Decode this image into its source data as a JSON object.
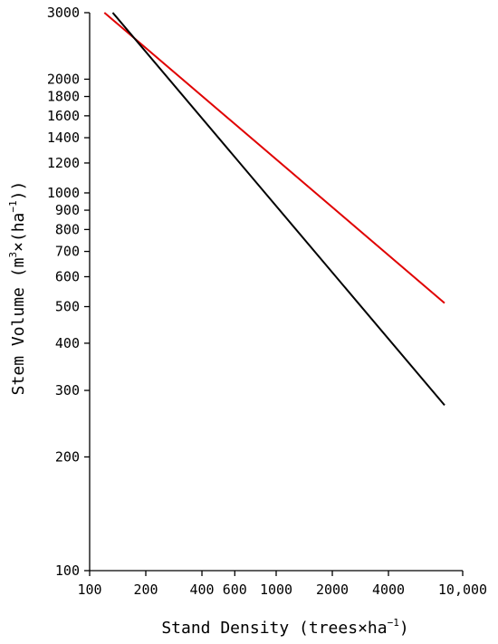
{
  "chart_data": {
    "type": "line",
    "xscale": "log",
    "yscale": "log",
    "xlim": [
      100,
      10000
    ],
    "ylim": [
      100,
      3000
    ],
    "grid": false,
    "xlabel": {
      "prefix": "Stand Density (trees×ha",
      "sup": "−1",
      "suffix": ")"
    },
    "ylabel": {
      "prefix": "Stem Volume (m",
      "sup1": "3",
      "mid": "×(ha",
      "sup2": "−1",
      "suffix": "))"
    },
    "x_ticks": [
      {
        "value": 100,
        "label": "100"
      },
      {
        "value": 200,
        "label": "200"
      },
      {
        "value": 400,
        "label": "400"
      },
      {
        "value": 600,
        "label": "600"
      },
      {
        "value": 1000,
        "label": "1000"
      },
      {
        "value": 2000,
        "label": "2000"
      },
      {
        "value": 4000,
        "label": "4000"
      },
      {
        "value": 10000,
        "label": "10,000"
      }
    ],
    "y_ticks": [
      {
        "value": 100,
        "label": "100"
      },
      {
        "value": 200,
        "label": "200"
      },
      {
        "value": 300,
        "label": "300"
      },
      {
        "value": 400,
        "label": "400"
      },
      {
        "value": 500,
        "label": "500"
      },
      {
        "value": 600,
        "label": "600"
      },
      {
        "value": 700,
        "label": "700"
      },
      {
        "value": 800,
        "label": "800"
      },
      {
        "value": 900,
        "label": "900"
      },
      {
        "value": 1000,
        "label": "1000"
      },
      {
        "value": 1200,
        "label": "1200"
      },
      {
        "value": 1400,
        "label": "1400"
      },
      {
        "value": 1600,
        "label": "1600"
      },
      {
        "value": 1800,
        "label": "1800"
      },
      {
        "value": 2000,
        "label": "2000"
      },
      {
        "value": 3000,
        "label": "3000"
      }
    ],
    "series": [
      {
        "color": "#e00000",
        "x": [
          120,
          8000
        ],
        "y": [
          3000,
          511
        ]
      },
      {
        "color": "#000000",
        "x": [
          133,
          8000
        ],
        "y": [
          3000,
          274
        ]
      }
    ]
  }
}
